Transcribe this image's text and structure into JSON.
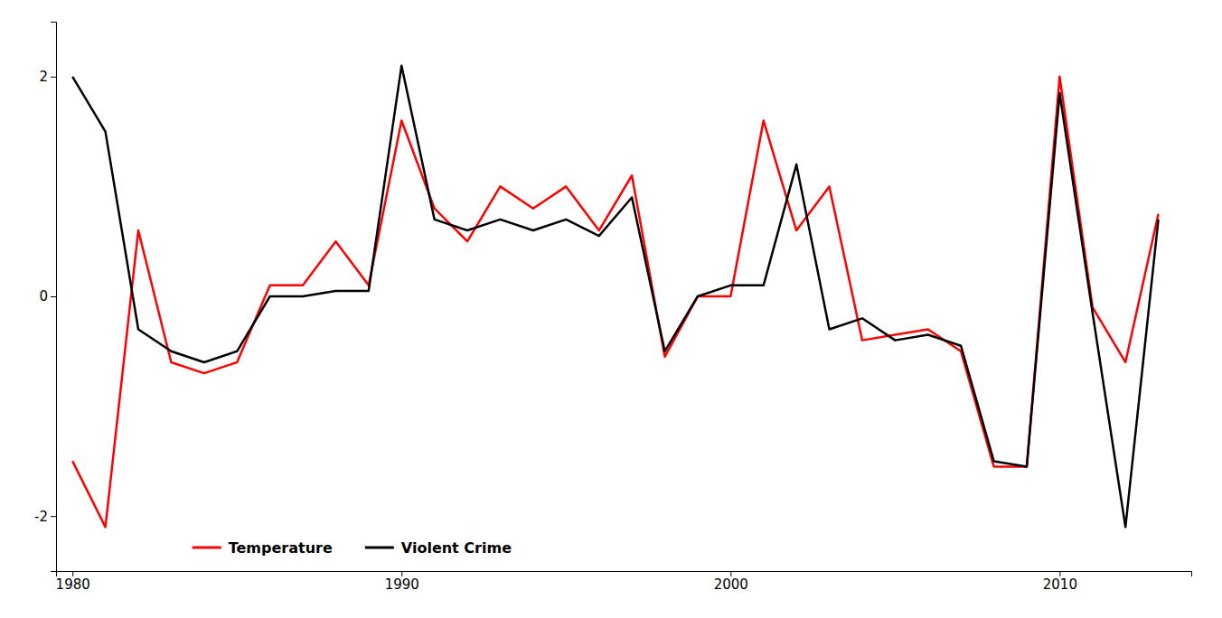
{
  "chart_data": {
    "type": "line",
    "x": [
      1980,
      1981,
      1982,
      1983,
      1984,
      1985,
      1986,
      1987,
      1988,
      1989,
      1990,
      1991,
      1992,
      1993,
      1994,
      1995,
      1996,
      1997,
      1998,
      1999,
      2000,
      2001,
      2002,
      2003,
      2004,
      2005,
      2006,
      2007,
      2008,
      2009,
      2010,
      2011,
      2012,
      2013
    ],
    "series": [
      {
        "name": "Temperature",
        "color": "#ff0000",
        "values": [
          -1.5,
          -2.1,
          0.6,
          -0.6,
          -0.7,
          -0.6,
          0.1,
          0.1,
          0.5,
          0.1,
          1.6,
          0.8,
          0.5,
          1.0,
          0.8,
          1.0,
          0.6,
          1.1,
          -0.55,
          0.0,
          0.0,
          1.6,
          0.6,
          1.0,
          -0.4,
          -0.35,
          -0.3,
          -0.5,
          -1.55,
          -1.55,
          2.0,
          -0.1,
          -0.6,
          0.75
        ]
      },
      {
        "name": "Violent Crime",
        "color": "#000000",
        "values": [
          2.0,
          1.5,
          -0.3,
          -0.5,
          -0.6,
          -0.5,
          0.0,
          0.0,
          0.05,
          0.05,
          2.1,
          0.7,
          0.6,
          0.7,
          0.6,
          0.7,
          0.55,
          0.9,
          -0.5,
          0.0,
          0.1,
          0.1,
          1.2,
          -0.3,
          -0.2,
          -0.4,
          -0.35,
          -0.45,
          -1.5,
          -1.55,
          1.85,
          -0.15,
          -2.1,
          0.7
        ]
      }
    ],
    "xlim": [
      1979.5,
      2014.0
    ],
    "ylim": [
      -2.5,
      2.5
    ],
    "xticks": [
      1980,
      1990,
      2000,
      2010
    ],
    "yticks": [
      -2,
      0,
      2
    ],
    "grid": false,
    "legend": "lower left"
  }
}
